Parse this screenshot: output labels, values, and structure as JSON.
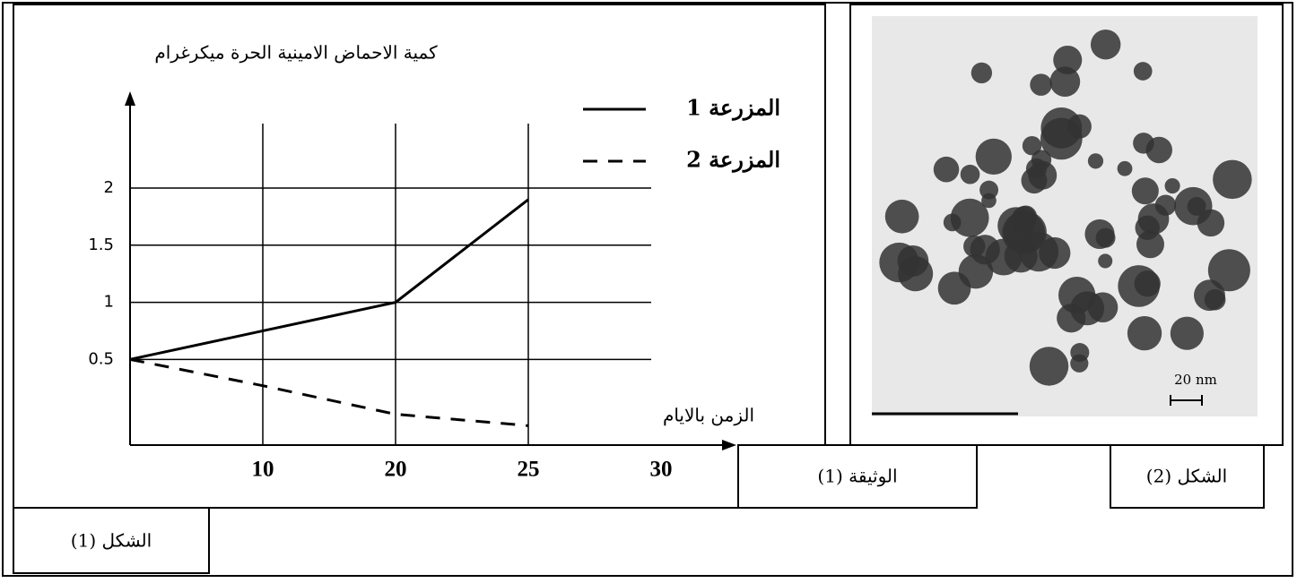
{
  "chart_data": {
    "type": "line",
    "y_title": "كمية الاحماض الامينية الحرة ميكرغرام",
    "x_title": "الزمن بالايام",
    "categories": [
      null,
      "10",
      "20",
      "25",
      "30"
    ],
    "series": [
      {
        "name": "المزرعة 1",
        "color": "#000000",
        "style": "solid",
        "values": [
          0.5,
          0.75,
          1,
          1.9,
          null
        ]
      },
      {
        "name": "المزرعة 2",
        "color": "#000000",
        "style": "dashed",
        "values": [
          0.5,
          0.27,
          0.02,
          -0.08,
          null
        ]
      }
    ],
    "ylim": [
      -0.25,
      2.8
    ],
    "yticks": [
      0.5,
      1,
      1.5,
      2
    ],
    "grid": true,
    "grid_categories": [
      1,
      2,
      3
    ]
  },
  "labels": {
    "document": "الوثيقة (1)",
    "figure1": "الشكل (1)",
    "figure2": "الشكل (2)",
    "scale": "20 nm"
  }
}
